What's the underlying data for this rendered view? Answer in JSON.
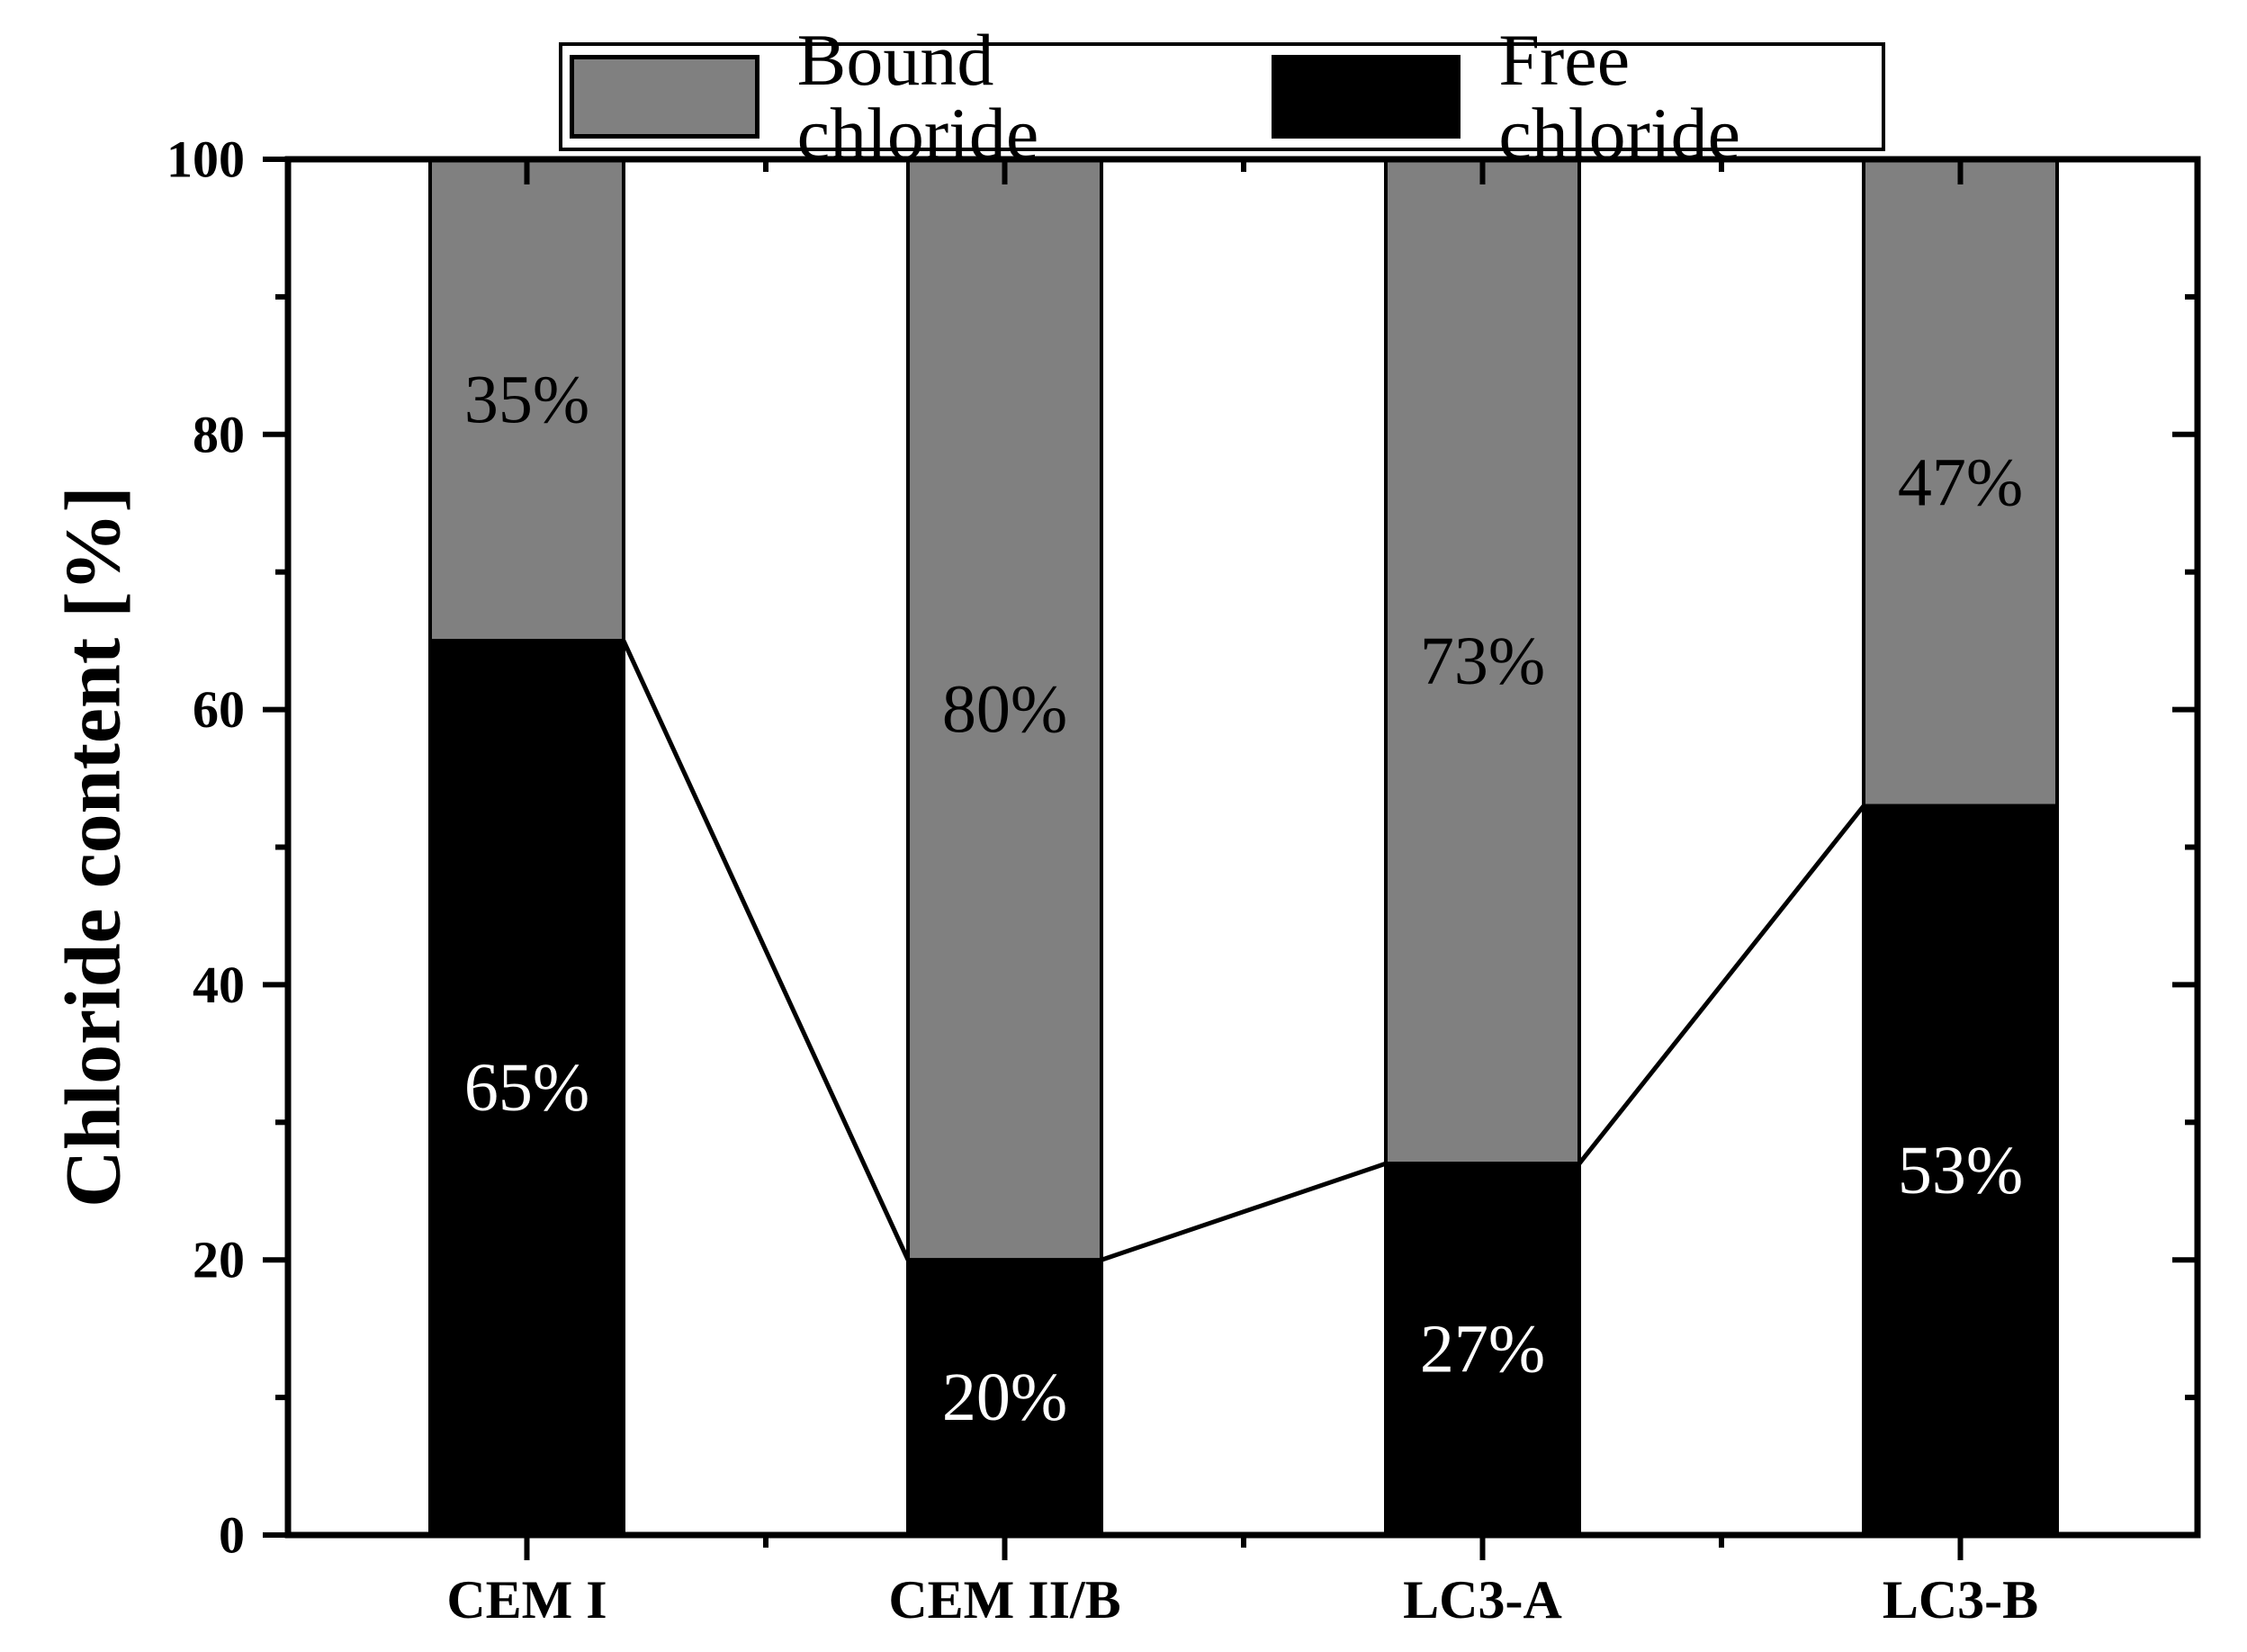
{
  "chart_data": {
    "type": "bar",
    "stacked": true,
    "title": "",
    "xlabel": "",
    "ylabel": "Chloride content [%]",
    "ylim": [
      0,
      100
    ],
    "yticks": [
      0,
      20,
      40,
      60,
      80,
      100
    ],
    "yminor": [
      10,
      30,
      50,
      70,
      90
    ],
    "grid": false,
    "categories": [
      "CEM I",
      "CEM II/B",
      "LC3-A",
      "LC3-B"
    ],
    "series": [
      {
        "name": "Free chloride",
        "color": "#000000",
        "label_color": "#ffffff",
        "values": [
          65,
          20,
          27,
          53
        ],
        "labels": [
          "65%",
          "20%",
          "27%",
          "53%"
        ]
      },
      {
        "name": "Bound chloride",
        "color": "#808080",
        "label_color": "#000000",
        "values": [
          35,
          80,
          73,
          47
        ],
        "labels": [
          "35%",
          "80%",
          "73%",
          "47%"
        ]
      }
    ],
    "connectors": "tops of Free chloride segments joined between adjacent bars",
    "legend": {
      "position": "top",
      "entries": [
        {
          "label": "Bound chloride",
          "color": "#808080"
        },
        {
          "label": "Free chloride",
          "color": "#000000"
        }
      ]
    },
    "colors": {
      "axis": "#000000",
      "background": "#ffffff"
    }
  }
}
